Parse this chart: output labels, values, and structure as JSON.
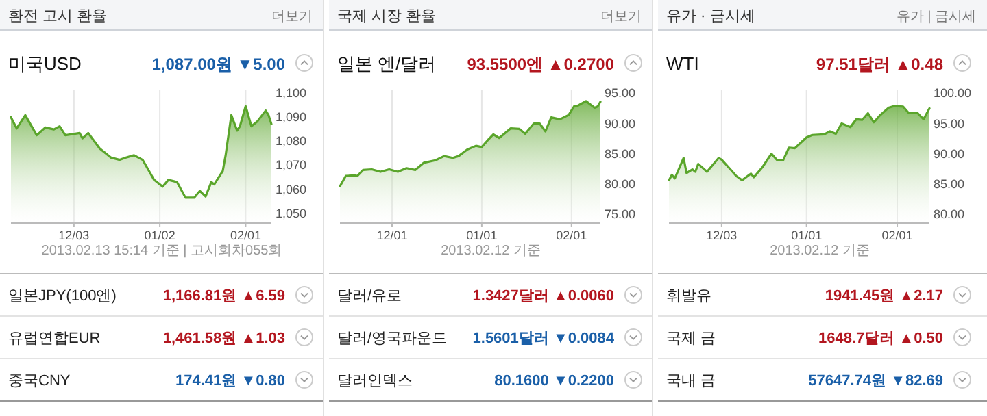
{
  "chart_data": [
    {
      "type": "area",
      "title": "환전 고시 환율",
      "subtitle": "미국USD",
      "grid": "x",
      "xlim": [
        "2012-11-11",
        "2013-02-10"
      ],
      "ylim": [
        1046,
        1101
      ],
      "xticks": [
        {
          "value": "2012-12-03",
          "label": "12/03"
        },
        {
          "value": "2013-01-02",
          "label": "01/02"
        },
        {
          "value": "2013-02-01",
          "label": "02/01"
        }
      ],
      "yticks": [
        {
          "value": 1050,
          "label": "1,050"
        },
        {
          "value": 1060,
          "label": "1,060"
        },
        {
          "value": 1070,
          "label": "1,070"
        },
        {
          "value": 1080,
          "label": "1,080"
        },
        {
          "value": 1090,
          "label": "1,090"
        },
        {
          "value": 1100,
          "label": "1,100"
        }
      ],
      "x": [
        "2012-11-11",
        "2012-11-13",
        "2012-11-16",
        "2012-11-20",
        "2012-11-23",
        "2012-11-26",
        "2012-11-28",
        "2012-11-30",
        "2012-12-05",
        "2012-12-06",
        "2012-12-08",
        "2012-12-12",
        "2012-12-16",
        "2012-12-19",
        "2012-12-21",
        "2012-12-24",
        "2012-12-27",
        "2012-12-31",
        "2013-01-03",
        "2013-01-05",
        "2013-01-08",
        "2013-01-11",
        "2013-01-14",
        "2013-01-16",
        "2013-01-18",
        "2013-01-20",
        "2013-01-21",
        "2013-01-24",
        "2013-01-25",
        "2013-01-27",
        "2013-01-29",
        "2013-01-30",
        "2013-02-01",
        "2013-02-03",
        "2013-02-05",
        "2013-02-08",
        "2013-02-09",
        "2013-02-10"
      ],
      "series": [
        {
          "color": "#5aa52b",
          "values": [
            1089.8,
            1085.2,
            1090.7,
            1082.4,
            1085.6,
            1084.8,
            1086.1,
            1082.4,
            1083.3,
            1081.1,
            1083.3,
            1076.9,
            1073.1,
            1072.2,
            1073.1,
            1074.1,
            1072.2,
            1063.9,
            1061.1,
            1063.9,
            1063.0,
            1056.5,
            1056.5,
            1059.3,
            1057.0,
            1063.0,
            1062.0,
            1067.6,
            1074.1,
            1090.7,
            1084.3,
            1086.1,
            1094.4,
            1086.1,
            1088.0,
            1092.6,
            1090.7,
            1087.0
          ]
        }
      ],
      "annotations": [
        "더보기",
        "1,087.00원 ▼5.00",
        "2013.02.13 15:14 기준 | 고시회차055회",
        "일본JPY(100엔)",
        "1,166.81원 ▲6.59",
        "유럽연합EUR",
        "1,461.58원 ▲1.03",
        "중국CNY",
        "174.41원 ▼0.80"
      ]
    },
    {
      "type": "area",
      "title": "국제 시장 환율",
      "subtitle": "일본 엔/달러",
      "grid": "x",
      "xlim": [
        "2012-11-13",
        "2013-02-11"
      ],
      "ylim": [
        73.5,
        95.5
      ],
      "xticks": [
        {
          "value": "2012-12-01",
          "label": "12/01"
        },
        {
          "value": "2013-01-01",
          "label": "01/01"
        },
        {
          "value": "2013-02-01",
          "label": "02/01"
        }
      ],
      "yticks": [
        {
          "value": 75,
          "label": "75.00"
        },
        {
          "value": 80,
          "label": "80.00"
        },
        {
          "value": 85,
          "label": "85.00"
        },
        {
          "value": 90,
          "label": "90.00"
        },
        {
          "value": 95,
          "label": "95.00"
        }
      ],
      "x": [
        "2012-11-13",
        "2012-11-15",
        "2012-11-18",
        "2012-11-19",
        "2012-11-21",
        "2012-11-24",
        "2012-11-27",
        "2012-11-30",
        "2012-12-03",
        "2012-12-06",
        "2012-12-09",
        "2012-12-12",
        "2012-12-16",
        "2012-12-19",
        "2012-12-22",
        "2012-12-24",
        "2012-12-27",
        "2012-12-30",
        "2013-01-01",
        "2013-01-03",
        "2013-01-05",
        "2013-01-07",
        "2013-01-11",
        "2013-01-14",
        "2013-01-16",
        "2013-01-19",
        "2013-01-21",
        "2013-01-23",
        "2013-01-25",
        "2013-01-28",
        "2013-01-31",
        "2013-02-02",
        "2013-02-03",
        "2013-02-06",
        "2013-02-09",
        "2013-02-10",
        "2013-02-11"
      ],
      "series": [
        {
          "color": "#5aa52b",
          "values": [
            79.6,
            81.3,
            81.4,
            81.3,
            82.3,
            82.4,
            82.0,
            82.4,
            82.0,
            82.6,
            82.3,
            83.5,
            83.9,
            84.6,
            84.3,
            84.6,
            85.7,
            86.3,
            86.1,
            87.2,
            88.2,
            87.6,
            89.2,
            89.1,
            88.3,
            90.0,
            90.0,
            88.7,
            91.0,
            90.7,
            91.4,
            92.9,
            92.9,
            93.7,
            92.6,
            92.8,
            93.6
          ]
        }
      ],
      "annotations": [
        "더보기",
        "93.5500엔 ▲0.2700",
        "2013.02.12 기준",
        "달러/유로",
        "1.3427달러 ▲0.0060",
        "달러/영국파운드",
        "1.5601달러 ▼0.0084",
        "달러인덱스",
        "80.1600 ▼0.2200"
      ]
    },
    {
      "type": "area",
      "title": "유가 · 금시세",
      "subtitle": "WTI",
      "grid": "x",
      "xlim": [
        "2012-11-15",
        "2013-02-12"
      ],
      "ylim": [
        78.5,
        100.5
      ],
      "xticks": [
        {
          "value": "2012-12-03",
          "label": "12/03"
        },
        {
          "value": "2013-01-01",
          "label": "01/01"
        },
        {
          "value": "2013-02-01",
          "label": "02/01"
        }
      ],
      "yticks": [
        {
          "value": 80,
          "label": "80.00"
        },
        {
          "value": 85,
          "label": "85.00"
        },
        {
          "value": 90,
          "label": "90.00"
        },
        {
          "value": 95,
          "label": "95.00"
        },
        {
          "value": 100,
          "label": "100.00"
        }
      ],
      "x": [
        "2012-11-15",
        "2012-11-16",
        "2012-11-17",
        "2012-11-20",
        "2012-11-21",
        "2012-11-23",
        "2012-11-24",
        "2012-11-25",
        "2012-11-28",
        "2012-12-02",
        "2012-12-03",
        "2012-12-06",
        "2012-12-08",
        "2012-12-10",
        "2012-12-13",
        "2012-12-14",
        "2012-12-17",
        "2012-12-20",
        "2012-12-22",
        "2012-12-24",
        "2012-12-26",
        "2012-12-28",
        "2013-01-01",
        "2013-01-03",
        "2013-01-07",
        "2013-01-09",
        "2013-01-11",
        "2013-01-13",
        "2013-01-16",
        "2013-01-18",
        "2013-01-20",
        "2013-01-22",
        "2013-01-24",
        "2013-01-26",
        "2013-01-29",
        "2013-01-31",
        "2013-02-03",
        "2013-02-05",
        "2013-02-08",
        "2013-02-10",
        "2013-02-12"
      ],
      "series": [
        {
          "color": "#5aa52b",
          "values": [
            85.6,
            86.5,
            85.9,
            89.3,
            86.8,
            87.4,
            87.0,
            88.3,
            87.0,
            89.3,
            89.0,
            87.4,
            86.3,
            85.6,
            86.7,
            86.1,
            87.8,
            90.0,
            88.9,
            88.9,
            91.0,
            90.9,
            92.7,
            93.1,
            93.2,
            93.7,
            93.3,
            95.0,
            94.4,
            95.7,
            95.6,
            96.7,
            95.2,
            96.3,
            97.6,
            97.9,
            97.8,
            96.7,
            96.7,
            95.7,
            97.5
          ]
        }
      ],
      "annotations": [
        "유가 | 금시세",
        "97.51달러 ▲0.48",
        "2013.02.12 기준",
        "휘발유",
        "1941.45원 ▲2.17",
        "국제 금",
        "1648.7달러 ▲0.50",
        "국내 금",
        "57647.74원 ▼82.69"
      ]
    }
  ]
}
